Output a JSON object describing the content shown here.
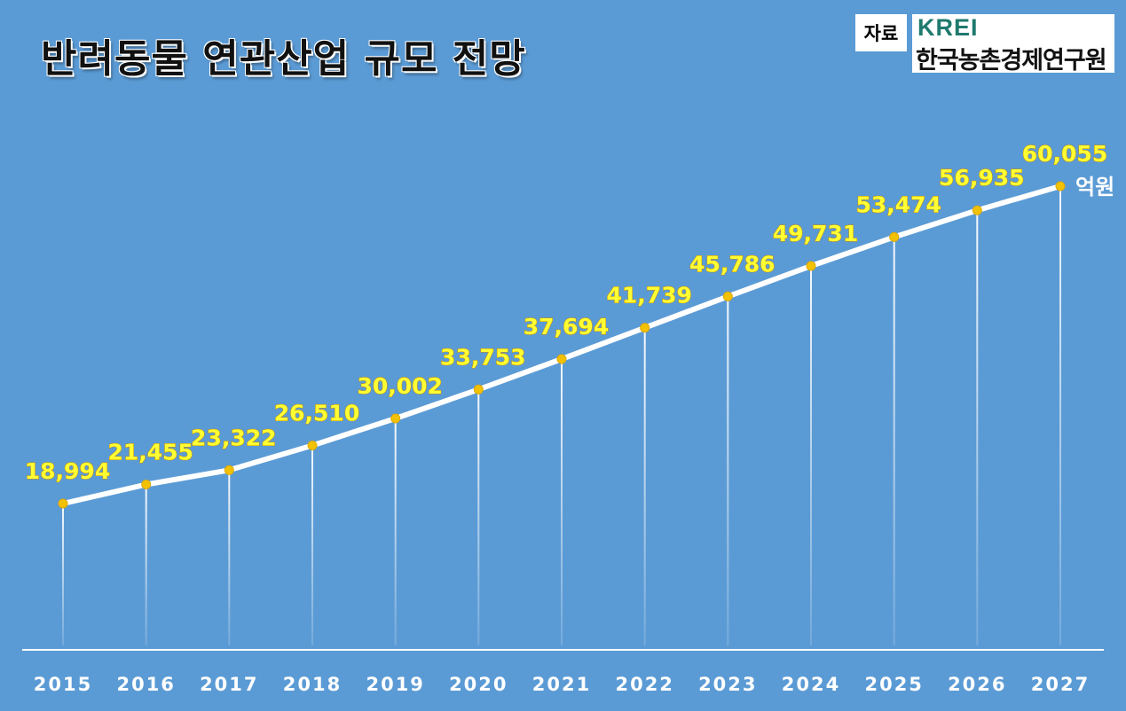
{
  "title": "반려동물 연관산업 규모 전망",
  "source": {
    "label": "자료",
    "logo": "KREI",
    "org_name": "한국농촌경제연구원"
  },
  "colors": {
    "background": "#5b9bd5",
    "line": "#ffffff",
    "marker": "#f2c200",
    "value_label": "#ffff33"
  },
  "chart_data": {
    "type": "line",
    "title": "반려동물 연관산업 규모 전망",
    "xlabel": "",
    "ylabel": "",
    "unit": "억원",
    "categories": [
      "2015",
      "2016",
      "2017",
      "2018",
      "2019",
      "2020",
      "2021",
      "2022",
      "2023",
      "2024",
      "2025",
      "2026",
      "2027"
    ],
    "values": [
      18994,
      21455,
      23322,
      26510,
      30002,
      33753,
      37694,
      41739,
      45786,
      49731,
      53474,
      56935,
      60055
    ],
    "value_labels": [
      "18,994",
      "21,455",
      "23,322",
      "26,510",
      "30,002",
      "33,753",
      "37,694",
      "41,739",
      "45,786",
      "49,731",
      "53,474",
      "56,935",
      "60,055"
    ],
    "ylim": [
      0,
      65000
    ],
    "grid": false,
    "legend": "none"
  }
}
